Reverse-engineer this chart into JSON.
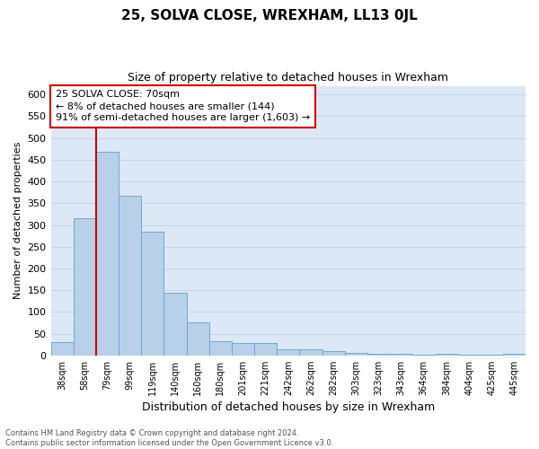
{
  "title": "25, SOLVA CLOSE, WREXHAM, LL13 0JL",
  "subtitle": "Size of property relative to detached houses in Wrexham",
  "xlabel": "Distribution of detached houses by size in Wrexham",
  "ylabel": "Number of detached properties",
  "footer_line1": "Contains HM Land Registry data © Crown copyright and database right 2024.",
  "footer_line2": "Contains public sector information licensed under the Open Government Licence v3.0.",
  "categories": [
    "38sqm",
    "58sqm",
    "79sqm",
    "99sqm",
    "119sqm",
    "140sqm",
    "160sqm",
    "180sqm",
    "201sqm",
    "221sqm",
    "242sqm",
    "262sqm",
    "282sqm",
    "303sqm",
    "323sqm",
    "343sqm",
    "364sqm",
    "384sqm",
    "404sqm",
    "425sqm",
    "445sqm"
  ],
  "values": [
    31,
    315,
    468,
    368,
    284,
    144,
    76,
    32,
    29,
    28,
    15,
    15,
    9,
    6,
    4,
    4,
    1,
    4,
    1,
    1,
    3
  ],
  "bar_color": "#b8d0e8",
  "bar_edge_color": "#6aaad4",
  "grid_color": "#c8d4e4",
  "bg_color": "#dce8f5",
  "vline_x": 1.5,
  "vline_color": "#cc0000",
  "annotation_line1": "25 SOLVA CLOSE: 70sqm",
  "annotation_line2": "← 8% of detached houses are smaller (144)",
  "annotation_line3": "91% of semi-detached houses are larger (1,603) →",
  "ann_box_edge_color": "#cc0000",
  "ylim_max": 620,
  "yticks": [
    0,
    50,
    100,
    150,
    200,
    250,
    300,
    350,
    400,
    450,
    500,
    550,
    600
  ]
}
